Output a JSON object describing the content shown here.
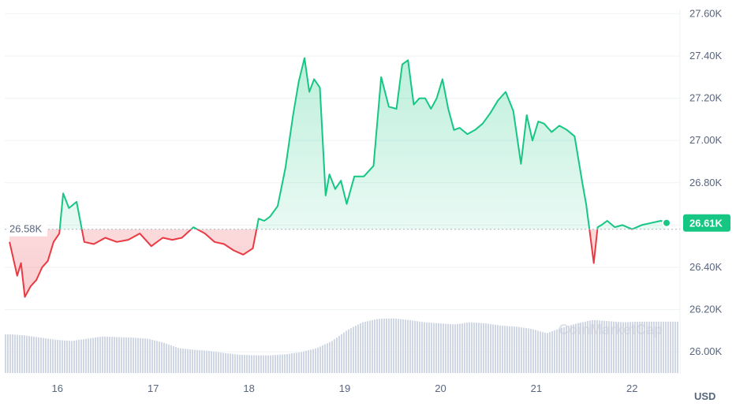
{
  "chart_data": {
    "type": "area",
    "y_unit": "USD",
    "baseline_value": 26580,
    "baseline_label": "26.58K",
    "current_value": 26610,
    "current_label": "26.61K",
    "ylim": [
      25900,
      27620
    ],
    "y_ticks": [
      {
        "value": 26000,
        "label": "26.00K"
      },
      {
        "value": 26200,
        "label": "26.20K"
      },
      {
        "value": 26400,
        "label": "26.40K"
      },
      {
        "value": 26600,
        "label": "26.60K"
      },
      {
        "value": 26800,
        "label": "26.80K"
      },
      {
        "value": 27000,
        "label": "27.00K"
      },
      {
        "value": 27200,
        "label": "27.20K"
      },
      {
        "value": 27400,
        "label": "27.40K"
      },
      {
        "value": 27600,
        "label": "27.60K"
      }
    ],
    "xlim": [
      15.45,
      22.5
    ],
    "x_ticks": [
      {
        "value": 16,
        "label": "16"
      },
      {
        "value": 17,
        "label": "17"
      },
      {
        "value": 18,
        "label": "18"
      },
      {
        "value": 19,
        "label": "19"
      },
      {
        "value": 20,
        "label": "20"
      },
      {
        "value": 21,
        "label": "21"
      },
      {
        "value": 22,
        "label": "22"
      }
    ],
    "watermark": "CoinMarketCap",
    "colors": {
      "up": "#16c784",
      "down": "#ea3943",
      "axis_text": "#58667e",
      "volume": "#cfd6e4",
      "grid": "#eff2f5",
      "badge": "#16c784"
    },
    "series": [
      {
        "x": [
          15.5,
          15.58,
          15.62,
          15.66,
          15.72,
          15.78,
          15.84,
          15.9,
          15.96,
          16.02,
          16.06,
          16.12,
          16.2,
          16.28,
          16.38,
          16.5,
          16.62,
          16.74,
          16.86,
          16.98,
          17.1,
          17.2,
          17.3,
          17.42,
          17.54,
          17.64,
          17.74,
          17.84,
          17.94,
          18.04,
          18.1,
          18.16,
          18.22,
          18.3,
          18.38,
          18.46,
          18.52,
          18.58,
          18.63,
          18.68,
          18.74,
          18.8,
          18.84,
          18.9,
          18.96,
          19.02,
          19.1,
          19.2,
          19.3,
          19.38,
          19.46,
          19.54,
          19.6,
          19.66,
          19.72,
          19.78,
          19.84,
          19.9,
          19.96,
          20.02,
          20.08,
          20.14,
          20.2,
          20.28,
          20.36,
          20.44,
          20.52,
          20.6,
          20.68,
          20.76,
          20.84,
          20.9,
          20.96,
          21.02,
          21.08,
          21.16,
          21.24,
          21.32,
          21.4,
          21.48,
          21.52,
          21.56,
          21.6,
          21.64,
          21.68,
          21.74,
          21.82,
          21.9,
          22.0,
          22.1,
          22.2,
          22.3,
          22.36
        ],
        "values": [
          26520,
          26360,
          26420,
          26260,
          26310,
          26340,
          26400,
          26430,
          26520,
          26560,
          26750,
          26680,
          26710,
          26520,
          26510,
          26540,
          26520,
          26530,
          26560,
          26500,
          26540,
          26530,
          26540,
          26590,
          26560,
          26520,
          26510,
          26480,
          26460,
          26490,
          26630,
          26620,
          26640,
          26690,
          26870,
          27120,
          27280,
          27390,
          27230,
          27290,
          27250,
          26740,
          26840,
          26770,
          26810,
          26700,
          26830,
          26830,
          26880,
          27300,
          27160,
          27150,
          27360,
          27380,
          27170,
          27200,
          27200,
          27150,
          27200,
          27290,
          27150,
          27050,
          27060,
          27030,
          27050,
          27080,
          27130,
          27190,
          27230,
          27140,
          26890,
          27120,
          27000,
          27090,
          27080,
          27040,
          27070,
          27050,
          27020,
          26800,
          26700,
          26560,
          26420,
          26590,
          26600,
          26620,
          26590,
          26600,
          26580,
          26600,
          26610,
          26620,
          26610
        ]
      }
    ],
    "volume_values": [
      0.7,
      0.68,
      0.64,
      0.6,
      0.58,
      0.62,
      0.66,
      0.65,
      0.64,
      0.62,
      0.55,
      0.45,
      0.42,
      0.4,
      0.36,
      0.33,
      0.32,
      0.32,
      0.34,
      0.38,
      0.45,
      0.58,
      0.78,
      0.92,
      0.98,
      0.99,
      0.96,
      0.92,
      0.9,
      0.88,
      0.92,
      0.9,
      0.86,
      0.84,
      0.8,
      0.72,
      0.82,
      0.9,
      0.96,
      0.94,
      0.92,
      0.93
    ],
    "volume_x": [
      15.5,
      15.66,
      15.82,
      15.98,
      16.14,
      16.3,
      16.46,
      16.62,
      16.78,
      16.94,
      17.1,
      17.26,
      17.42,
      17.58,
      17.74,
      17.9,
      18.06,
      18.22,
      18.38,
      18.54,
      18.7,
      18.86,
      19.02,
      19.18,
      19.34,
      19.5,
      19.66,
      19.82,
      19.98,
      20.14,
      20.3,
      20.46,
      20.62,
      20.78,
      20.94,
      21.1,
      21.26,
      21.42,
      21.58,
      21.74,
      21.9,
      22.06
    ]
  }
}
